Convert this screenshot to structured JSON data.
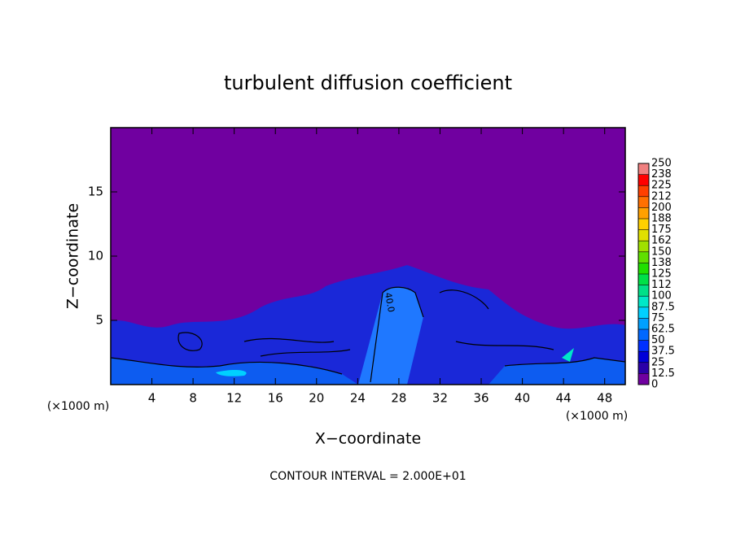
{
  "chart_data": {
    "type": "contour",
    "title": "turbulent diffusion coefficient",
    "xlabel": "X−coordinate",
    "ylabel": "Z−coordinate",
    "x_unit": "(×1000 m)",
    "z_unit": "(×1000 m)",
    "footnote": "CONTOUR INTERVAL = 2.000E+01",
    "annotation": "40.0",
    "xlim": [
      0,
      50
    ],
    "xticks": [
      4,
      8,
      12,
      16,
      20,
      24,
      28,
      32,
      36,
      40,
      44,
      48
    ],
    "ylim": [
      0,
      20
    ],
    "yticks": [
      5,
      10,
      15
    ],
    "colorbar": {
      "levels": [
        0,
        12.5,
        25,
        37.5,
        50,
        62.5,
        75,
        87.5,
        100,
        112,
        125,
        138,
        150,
        162,
        175,
        188,
        200,
        212,
        225,
        238,
        250
      ],
      "colors": [
        "#7000a0",
        "#2a00a8",
        "#0000d8",
        "#0030ff",
        "#0068ff",
        "#00a0ff",
        "#00d0ff",
        "#00e8c8",
        "#00e088",
        "#00e048",
        "#20e000",
        "#60e000",
        "#a0e000",
        "#e0e000",
        "#ffd000",
        "#ffa000",
        "#ff7000",
        "#ff4000",
        "#ff0000",
        "#f08080"
      ]
    }
  }
}
